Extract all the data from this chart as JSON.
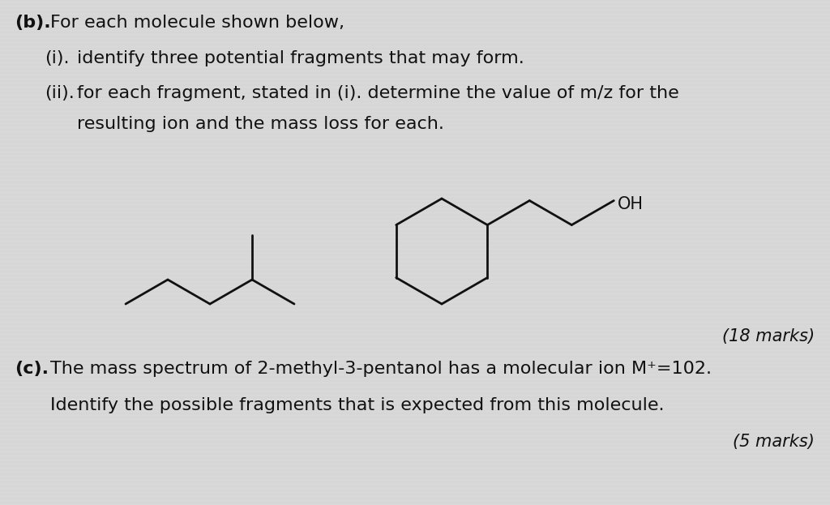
{
  "bg_color": "#d8d8d8",
  "text_color": "#111111",
  "title_b": "(b).",
  "line1_b": "For each molecule shown below,",
  "line2_i": "(i).",
  "line2_text": "identify three potential fragments that may form.",
  "line3_ii": "(ii).",
  "line3_text": "for each fragment, stated in (i). determine the value of m/z for the",
  "line4_text": "resulting ion and the mass loss for each.",
  "marks_b": "(18 marks)",
  "title_c": "(c).",
  "line_c1": "The mass spectrum of 2-methyl-3-pentanol has a molecular ion M⁺=102.",
  "line_c2": "Identify the possible fragments that is expected from this molecule.",
  "marks_c": "(5 marks)",
  "font_size_main": 16,
  "font_size_marks": 15,
  "lw": 2.0
}
